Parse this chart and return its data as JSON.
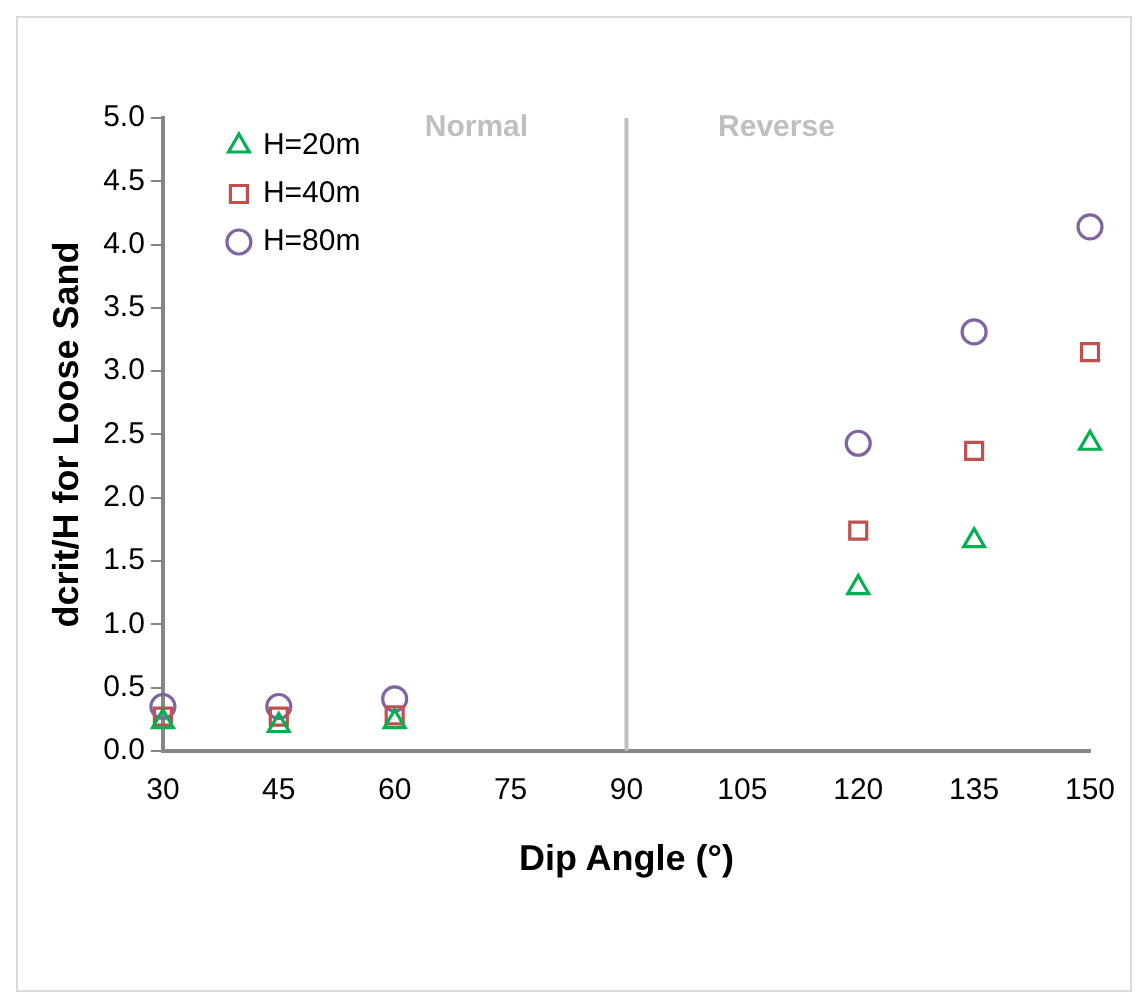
{
  "chart_data": {
    "type": "scatter",
    "xlabel": "Dip Angle (°)",
    "ylabel": "dcrit/H for Loose Sand",
    "x": [
      30,
      45,
      60,
      120,
      135,
      150
    ],
    "series": [
      {
        "name": "H=20m",
        "color": "#00b050",
        "marker": "triangle",
        "values": [
          0.23,
          0.2,
          0.23,
          1.29,
          1.66,
          2.43
        ]
      },
      {
        "name": "H=40m",
        "color": "#c0504d",
        "marker": "square",
        "values": [
          0.27,
          0.27,
          0.28,
          1.74,
          2.37,
          3.15
        ]
      },
      {
        "name": "H=80m",
        "color": "#8064a2",
        "marker": "circle",
        "values": [
          0.35,
          0.35,
          0.41,
          2.43,
          3.31,
          4.14
        ]
      }
    ],
    "xlim": [
      30,
      150
    ],
    "xticks": [
      30,
      45,
      60,
      75,
      90,
      105,
      120,
      135,
      150
    ],
    "ylim": [
      0,
      5
    ],
    "yticks": [
      {
        "value": 0,
        "label": "0.0"
      },
      0.5,
      {
        "value": 1,
        "label": "1.0"
      },
      1.5,
      {
        "value": 2,
        "label": "2.0"
      },
      2.5,
      {
        "value": 3,
        "label": "3.0"
      },
      3.5,
      {
        "value": 4,
        "label": "4.0"
      },
      4.5,
      {
        "value": 5,
        "label": "5.0"
      }
    ],
    "ref_lines": [
      {
        "axis": "x",
        "value": 90,
        "color": "#bfbfbf"
      }
    ],
    "annotations": [
      "Normal",
      "Reverse"
    ],
    "grid": false,
    "legend": "top left"
  }
}
